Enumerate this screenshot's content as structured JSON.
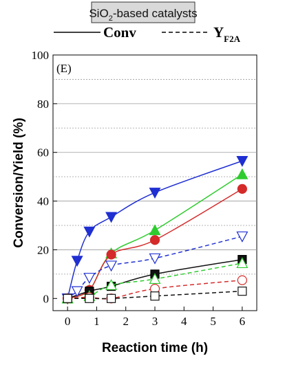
{
  "chart_data": {
    "type": "line",
    "header_box": {
      "text": "SiO",
      "subscript": "2",
      "suffix": "-based catalysts"
    },
    "legend": [
      {
        "label": "Conv",
        "line_style": "solid"
      },
      {
        "label": "Y",
        "subscript": "F2A",
        "line_style": "dashed"
      }
    ],
    "panel_label": "(E)",
    "xlabel": "Reaction time (h)",
    "ylabel": "Conversion/Yield (%)",
    "xlim": [
      -0.5,
      6.5
    ],
    "ylim": [
      -5,
      100
    ],
    "x_ticks": [
      0,
      1,
      2,
      3,
      4,
      5,
      6
    ],
    "y_ticks": [
      0,
      20,
      40,
      60,
      80,
      100
    ],
    "grid": "horizontal-dotted",
    "series": [
      {
        "color": "#1f2fd1",
        "marker": "triangle-down",
        "filled": true,
        "line_style": "solid",
        "x": [
          0,
          0.33,
          0.75,
          1.5,
          3,
          6
        ],
        "y": [
          0,
          15.5,
          27.5,
          33.5,
          43.5,
          56.5
        ]
      },
      {
        "color": "#2ecc2e",
        "marker": "triangle-up",
        "filled": true,
        "line_style": "solid",
        "x": [
          0,
          0.75,
          1.5,
          3,
          6
        ],
        "y": [
          0,
          3.5,
          18.5,
          28,
          51
        ]
      },
      {
        "color": "#d42a2a",
        "marker": "circle",
        "filled": true,
        "line_style": "solid",
        "x": [
          0,
          0.75,
          1.5,
          3,
          6
        ],
        "y": [
          0,
          3.5,
          18,
          24,
          45
        ]
      },
      {
        "color": "#111111",
        "marker": "square",
        "filled": true,
        "line_style": "solid",
        "x": [
          0,
          0.75,
          1.5,
          3,
          6
        ],
        "y": [
          0,
          3,
          5,
          10,
          16
        ]
      },
      {
        "color": "#1f2fd1",
        "marker": "triangle-down",
        "filled": false,
        "line_style": "dashed",
        "x": [
          0,
          0.33,
          0.75,
          1.5,
          3,
          6
        ],
        "y": [
          0,
          3,
          8.5,
          13.5,
          16.5,
          25.5
        ]
      },
      {
        "color": "#2ecc2e",
        "marker": "triangle-up",
        "filled": false,
        "line_style": "dashed",
        "x": [
          0,
          0.75,
          1.5,
          3,
          6
        ],
        "y": [
          0,
          1,
          5.5,
          8,
          14.5
        ]
      },
      {
        "color": "#d42a2a",
        "marker": "circle",
        "filled": false,
        "line_style": "dashed",
        "x": [
          0,
          0.75,
          1.5,
          3,
          6
        ],
        "y": [
          0,
          0.5,
          0,
          4,
          7.5
        ]
      },
      {
        "color": "#111111",
        "marker": "square",
        "filled": false,
        "line_style": "dashed",
        "x": [
          0,
          0.75,
          1.5,
          3,
          6
        ],
        "y": [
          0,
          0,
          0,
          1,
          3
        ]
      }
    ]
  }
}
